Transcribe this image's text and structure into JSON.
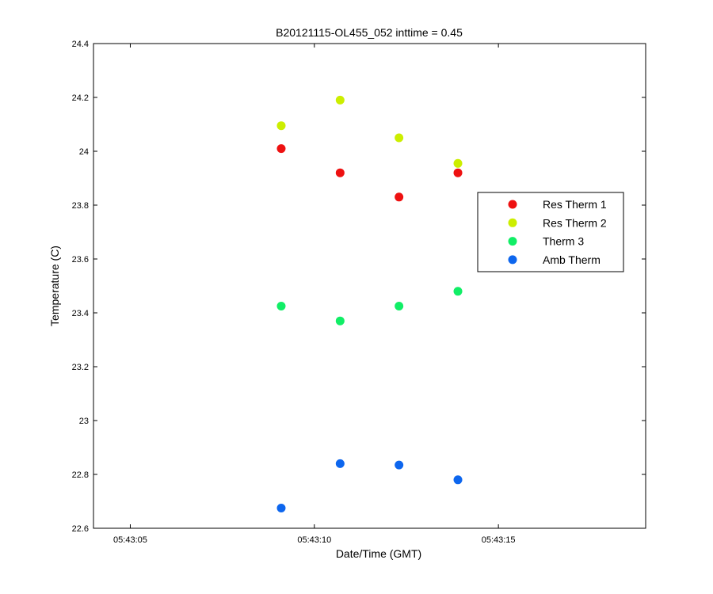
{
  "chart_data": {
    "type": "scatter",
    "title": "B20121115-OL455_052 inttime = 0.45",
    "xlabel": "Date/Time (GMT)",
    "ylabel": "Temperature (C)",
    "xlim": [
      "05:43:04",
      "05:43:19"
    ],
    "ylim": [
      22.6,
      24.4
    ],
    "x_ticks": [
      "05:43:05",
      "05:43:10",
      "05:43:15"
    ],
    "y_ticks": [
      "22.6",
      "22.8",
      "23",
      "23.2",
      "23.4",
      "23.6",
      "23.8",
      "24",
      "24.2",
      "24.4"
    ],
    "x": [
      "05:43:09.1",
      "05:43:10.7",
      "05:43:12.3",
      "05:43:13.9"
    ],
    "series": [
      {
        "name": "Res Therm 1",
        "color": "#ee1111",
        "values": [
          24.01,
          23.92,
          23.83,
          23.92
        ]
      },
      {
        "name": "Res Therm 2",
        "color": "#ccee00",
        "values": [
          24.095,
          24.19,
          24.05,
          23.955
        ]
      },
      {
        "name": "Therm 3",
        "color": "#11ee66",
        "values": [
          23.425,
          23.37,
          23.425,
          23.48
        ]
      },
      {
        "name": "Amb Therm",
        "color": "#0d66ee",
        "values": [
          22.675,
          22.84,
          22.835,
          22.78
        ]
      }
    ],
    "grid": false,
    "legend_position": "right"
  }
}
